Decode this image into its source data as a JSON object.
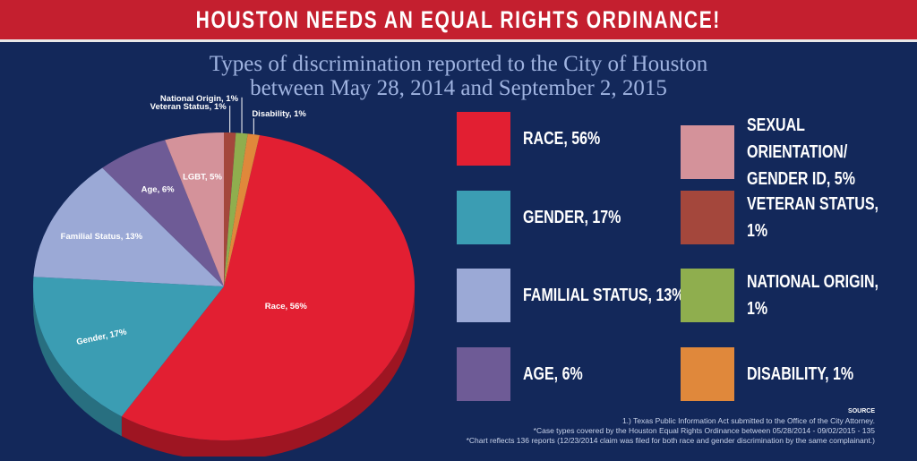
{
  "banner": {
    "title": "HOUSTON NEEDS AN EQUAL RIGHTS ORDINANCE!"
  },
  "chart_data": {
    "type": "pie",
    "title": "Types of discrimination reported to the City of Houston",
    "subtitle": "between May 28, 2014 and September 2, 2015",
    "slices": [
      {
        "label": "Race, 56%",
        "value": 56,
        "color": "#e21f32",
        "side": "#9e1522"
      },
      {
        "label": "Gender, 17%",
        "value": 17,
        "color": "#3b9db3",
        "side": "#286f80"
      },
      {
        "label": "Familial Status, 13%",
        "value": 13,
        "color": "#9ba9d6",
        "side": "#6b7699"
      },
      {
        "label": "Age, 6%",
        "value": 6,
        "color": "#6e5b96",
        "side": "#4a3d66"
      },
      {
        "label": "LGBT, 5%",
        "value": 5,
        "color": "#d4929a",
        "side": "#9a666c"
      },
      {
        "label": "Veteran Status, 1%",
        "value": 1,
        "color": "#a4473c",
        "side": "#70312a"
      },
      {
        "label": "National Origin, 1%",
        "value": 1,
        "color": "#8fae4e",
        "side": "#627836"
      },
      {
        "label": "Disability, 1%",
        "value": 1,
        "color": "#e0883b",
        "side": "#a05f28"
      }
    ]
  },
  "legend": [
    {
      "label": "RACE, 56%",
      "color": "#e21f32"
    },
    {
      "label": "GENDER, 17%",
      "color": "#3b9db3"
    },
    {
      "label": "FAMILIAL STATUS, 13%",
      "color": "#9ba9d6"
    },
    {
      "label": "AGE, 6%",
      "color": "#6e5b96"
    },
    {
      "label": "SEXUAL ORIENTATION/\nGENDER ID, 5%",
      "color": "#d4929a"
    },
    {
      "label": "VETERAN STATUS, 1%",
      "color": "#a4473c"
    },
    {
      "label": "NATIONAL ORIGIN, 1%",
      "color": "#8fae4e"
    },
    {
      "label": "DISABILITY, 1%",
      "color": "#e0883b"
    }
  ],
  "source": {
    "heading": "SOURCE",
    "line1": "1.) Texas Public Information Act submitted to the Office of the City Attorney.",
    "line2": "*Case types covered by the Houston Equal Rights Ordinance between 05/28/2014 - 09/02/2015 - 135",
    "line3": "*Chart reflects 136 reports (12/23/2014 claim was filed for both race and gender discrimination by the same complainant.)"
  }
}
